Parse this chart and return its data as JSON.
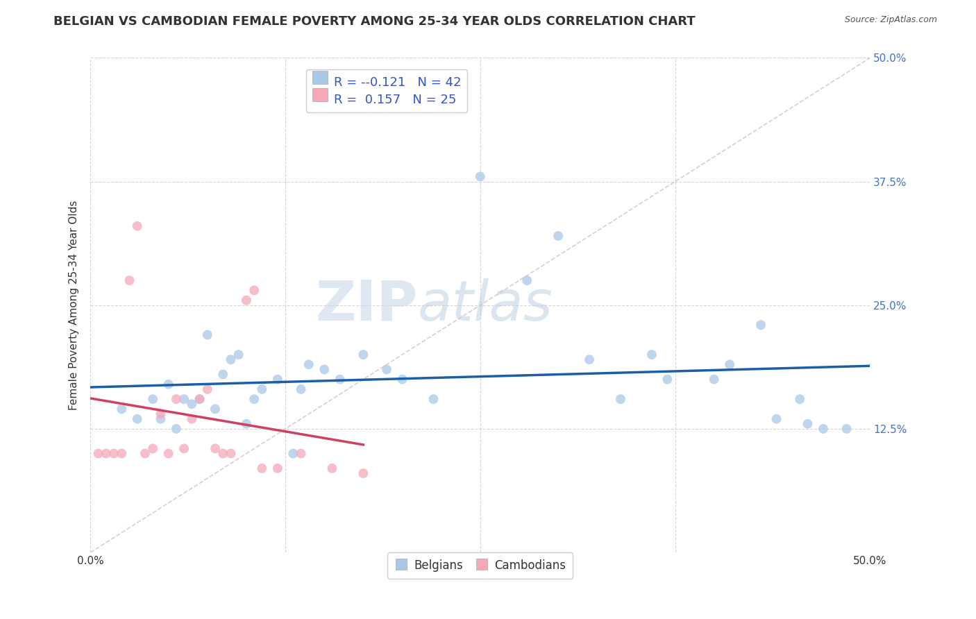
{
  "title": "BELGIAN VS CAMBODIAN FEMALE POVERTY AMONG 25-34 YEAR OLDS CORRELATION CHART",
  "source": "Source: ZipAtlas.com",
  "ylabel": "Female Poverty Among 25-34 Year Olds",
  "xlim": [
    0,
    0.5
  ],
  "ylim": [
    0,
    0.5
  ],
  "belgian_color": "#a8c8e8",
  "cambodian_color": "#f4a8b8",
  "belgian_trend_color": "#1a5fa8",
  "cambodian_trend_color": "#d04060",
  "legend_R_belgian": "-0.121",
  "legend_N_belgian": "42",
  "legend_R_cambodian": "0.157",
  "legend_N_cambodian": "25",
  "watermark_zip": "ZIP",
  "watermark_atlas": "atlas",
  "background_color": "#ffffff",
  "grid_color": "#cccccc",
  "title_fontsize": 13,
  "label_fontsize": 11,
  "tick_fontsize": 11,
  "marker_size": 10,
  "alpha": 0.75,
  "belgian_x": [
    0.02,
    0.03,
    0.04,
    0.045,
    0.05,
    0.055,
    0.06,
    0.065,
    0.07,
    0.075,
    0.08,
    0.085,
    0.09,
    0.095,
    0.1,
    0.105,
    0.11,
    0.12,
    0.13,
    0.135,
    0.14,
    0.15,
    0.16,
    0.175,
    0.19,
    0.2,
    0.22,
    0.25,
    0.28,
    0.3,
    0.32,
    0.34,
    0.36,
    0.37,
    0.4,
    0.41,
    0.43,
    0.44,
    0.455,
    0.46,
    0.47,
    0.485
  ],
  "belgian_y": [
    0.145,
    0.135,
    0.155,
    0.135,
    0.17,
    0.125,
    0.155,
    0.15,
    0.155,
    0.22,
    0.145,
    0.18,
    0.195,
    0.2,
    0.13,
    0.155,
    0.165,
    0.175,
    0.1,
    0.165,
    0.19,
    0.185,
    0.175,
    0.2,
    0.185,
    0.175,
    0.155,
    0.38,
    0.275,
    0.32,
    0.195,
    0.155,
    0.2,
    0.175,
    0.175,
    0.19,
    0.23,
    0.135,
    0.155,
    0.13,
    0.125,
    0.125
  ],
  "cambodian_x": [
    0.005,
    0.01,
    0.015,
    0.02,
    0.025,
    0.03,
    0.035,
    0.04,
    0.045,
    0.05,
    0.055,
    0.06,
    0.065,
    0.07,
    0.075,
    0.08,
    0.085,
    0.09,
    0.1,
    0.105,
    0.11,
    0.12,
    0.135,
    0.155,
    0.175
  ],
  "cambodian_y": [
    0.1,
    0.1,
    0.1,
    0.1,
    0.275,
    0.33,
    0.1,
    0.105,
    0.14,
    0.1,
    0.155,
    0.105,
    0.135,
    0.155,
    0.165,
    0.105,
    0.1,
    0.1,
    0.255,
    0.265,
    0.085,
    0.085,
    0.1,
    0.085,
    0.08
  ]
}
